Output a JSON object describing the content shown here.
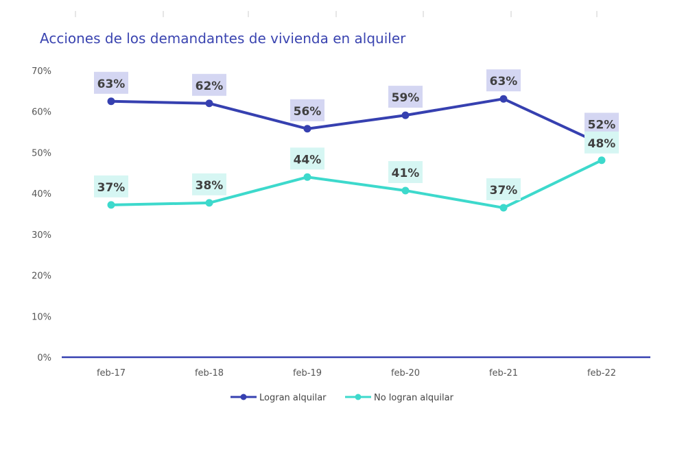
{
  "chart_data": {
    "type": "line",
    "title": "Acciones de los demandantes de vivienda en alquiler",
    "categories": [
      "feb-17",
      "feb-18",
      "feb-19",
      "feb-20",
      "feb-21",
      "feb-22"
    ],
    "yticks": [
      "0%",
      "10%",
      "20%",
      "30%",
      "40%",
      "50%",
      "60%",
      "70%"
    ],
    "ylim": [
      0,
      70
    ],
    "grid": false,
    "legend": "bottom",
    "series": [
      {
        "name": "Logran alquilar",
        "color": "#3640b0",
        "label_bg": "#d4d6f2",
        "values": [
          62.5,
          62,
          55.8,
          59.1,
          63.1,
          52
        ],
        "labels": [
          "63%",
          "62%",
          "56%",
          "59%",
          "63%",
          "52%"
        ]
      },
      {
        "name": "No logran alquilar",
        "color": "#3dd9cc",
        "label_bg": "#d6f6f3",
        "values": [
          37.2,
          37.7,
          44,
          40.7,
          36.5,
          48.1
        ],
        "labels": [
          "37%",
          "38%",
          "44%",
          "41%",
          "37%",
          "48%"
        ]
      }
    ]
  }
}
